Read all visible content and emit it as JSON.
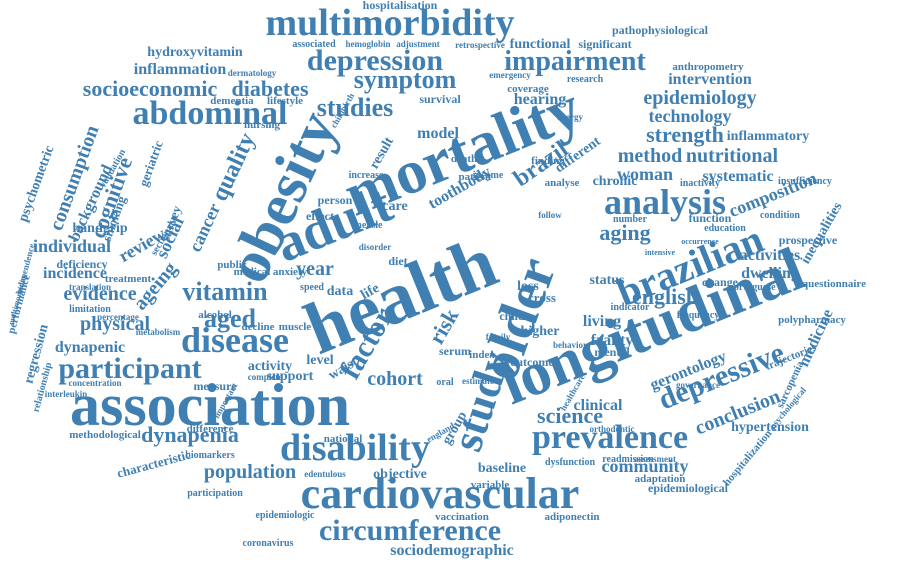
{
  "colors": {
    "word": "#3f7fb2",
    "background": "#ffffff"
  },
  "words": [
    "health",
    "mortality",
    "longitudinal",
    "obesity",
    "adult",
    "association",
    "older",
    "study",
    "cardiovascular",
    "multimorbidity",
    "depression",
    "analysis",
    "brazilian",
    "disability",
    "prevalence",
    "circumference",
    "abdominal",
    "disease",
    "impairment",
    "symptom",
    "participant",
    "studies",
    "depressive",
    "factor",
    "socioeconomic",
    "diabetes",
    "epidemiology",
    "technology",
    "strength",
    "quality",
    "vitamin",
    "aged",
    "dynapenia",
    "population",
    "science",
    "community",
    "cognitive",
    "consumption",
    "method",
    "nutritional",
    "woman",
    "brazil",
    "systematic",
    "aging",
    "composition",
    "english",
    "cohort",
    "risk",
    "conclusion",
    "inflammation",
    "hydroxyvitamin",
    "hospitalisation",
    "pathophysiological",
    "functional",
    "significant",
    "intervention",
    "inflammatory",
    "ageing",
    "evidence",
    "physical",
    "individual",
    "incidence",
    "handgrip",
    "background",
    "review",
    "social",
    "year",
    "cancer",
    "clinical",
    "living",
    "frailty",
    "status",
    "hearing",
    "survival",
    "dementia",
    "lifestyle",
    "anthropometry",
    "epidemiological",
    "hypertension",
    "gerontology",
    "medicine",
    "activities",
    "dwelling",
    "inequalities",
    "prospective",
    "questionnaire",
    "sociodemographic",
    "objective",
    "baseline",
    "vaccination",
    "adiponectin",
    "characteristic",
    "participation",
    "biomarkers",
    "methodological",
    "interleukin",
    "regression",
    "dynapenic",
    "deficiency",
    "limitation",
    "measure",
    "activity",
    "support",
    "level",
    "data",
    "public",
    "alcohol",
    "decline",
    "muscle",
    "model",
    "result",
    "care",
    "toothbody",
    "death",
    "patient",
    "different",
    "chronic",
    "finding",
    "income",
    "analyse",
    "function",
    "change",
    "mental",
    "higher",
    "loss",
    "cross",
    "child",
    "serum",
    "index",
    "outcome",
    "group",
    "waist",
    "life",
    "diet",
    "effect",
    "person",
    "difference",
    "national",
    "coronavirus",
    "psychometric",
    "smoking",
    "geriatric",
    "survey",
    "treatment",
    "polypharmacy",
    "trajectories",
    "adaptation",
    "hospitalization",
    "sarcopenia",
    "nursing",
    "validation",
    "sectional",
    "percentage",
    "metabolism",
    "translation",
    "performance",
    "relationship",
    "concentration",
    "coverage",
    "research",
    "emergency",
    "retrospective",
    "associated",
    "hemoglobin",
    "adjustment",
    "dermatology",
    "childbirth",
    "insufficiency",
    "condition",
    "inactivity",
    "number",
    "indicator",
    "frequency",
    "education",
    "portuguese",
    "governance",
    "psychological",
    "dysfunction",
    "readmission",
    "assessment",
    "orthodontic",
    "variable",
    "estimate",
    "england",
    "edentulous",
    "epidemiologic",
    "complete",
    "important",
    "medical",
    "anxiety",
    "speed",
    "disorder",
    "measle",
    "increase",
    "family",
    "behavior",
    "oral",
    "multimorbidity",
    "independence",
    "intensive",
    "occurrence",
    "healthcare",
    "energy",
    "follow"
  ]
}
